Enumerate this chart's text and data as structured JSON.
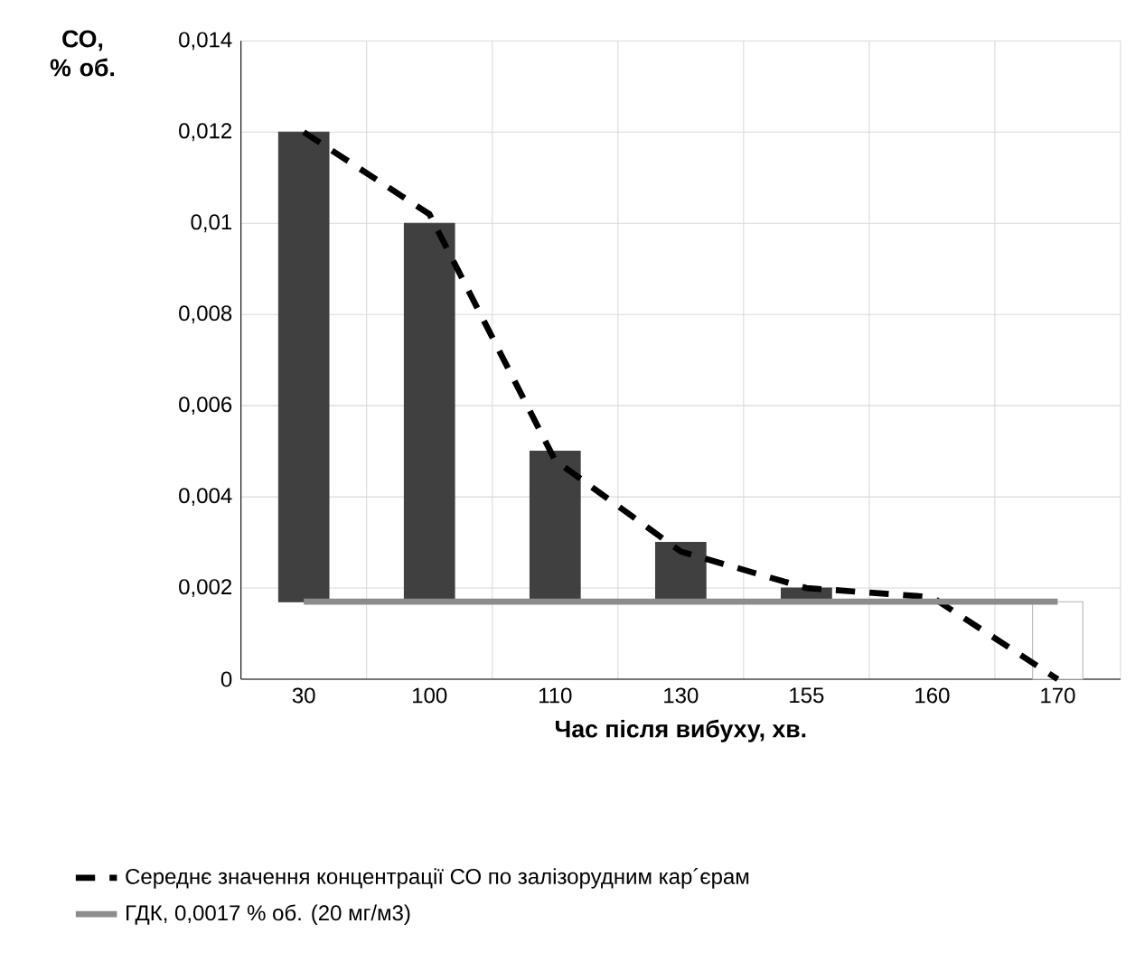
{
  "chart_data": {
    "type": "bar",
    "xlabel": "Час після вибуху, хв.",
    "ylabel": "СО, % об.",
    "categories": [
      "30",
      "100",
      "110",
      "130",
      "155",
      "160",
      "170"
    ],
    "ylim": [
      0,
      0.014
    ],
    "yticks": [
      0,
      {
        "value": 0.002,
        "label": "0,002"
      },
      {
        "value": 0.004,
        "label": "0,004"
      },
      {
        "value": 0.006,
        "label": "0,006"
      },
      {
        "value": 0.008,
        "label": "0,008"
      },
      {
        "value": 0.01,
        "label": "0,01"
      },
      {
        "value": 0.012,
        "label": "0,012"
      },
      {
        "value": 0.014,
        "label": "0,014"
      }
    ],
    "grid": true,
    "legend": "bottom",
    "marker": "none",
    "series": [
      {
        "values": [
          0.0103,
          0.0083,
          0.0033,
          0.0013,
          0.0003,
          null,
          0.0017
        ],
        "base": [
          0.0017,
          0.0017,
          0.0017,
          0.0017,
          0.0017,
          null,
          0
        ],
        "colors": [
          "#404040",
          "#404040",
          "#404040",
          "#404040",
          "#404040",
          "#404040",
          "#ffffff"
        ]
      },
      {
        "type": "line",
        "name": "Середнє значення концентрації СО по залізорудним кар´єрам",
        "color": "#000000",
        "line_style": "dashed",
        "values": [
          0.012,
          0.0102,
          0.0048,
          0.0028,
          0.002,
          0.0018,
          0
        ]
      },
      {
        "type": "line",
        "name": "ГДК, 0,0017 % об. (20 мг/м3)",
        "color": "#8c8c8c",
        "line_style": "solid",
        "values": [
          0.0017,
          0.0017,
          0.0017,
          0.0017,
          0.0017,
          0.0017,
          0.0017
        ]
      }
    ]
  }
}
